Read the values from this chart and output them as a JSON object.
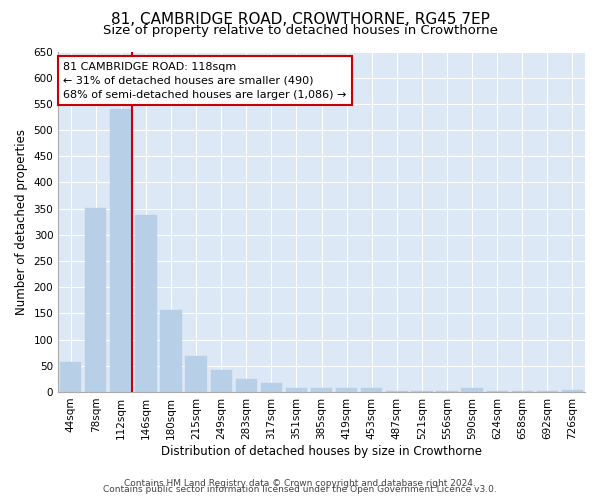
{
  "title1": "81, CAMBRIDGE ROAD, CROWTHORNE, RG45 7EP",
  "title2": "Size of property relative to detached houses in Crowthorne",
  "xlabel": "Distribution of detached houses by size in Crowthorne",
  "ylabel": "Number of detached properties",
  "categories": [
    "44sqm",
    "78sqm",
    "112sqm",
    "146sqm",
    "180sqm",
    "215sqm",
    "249sqm",
    "283sqm",
    "317sqm",
    "351sqm",
    "385sqm",
    "419sqm",
    "453sqm",
    "487sqm",
    "521sqm",
    "556sqm",
    "590sqm",
    "624sqm",
    "658sqm",
    "692sqm",
    "726sqm"
  ],
  "values": [
    57,
    352,
    541,
    337,
    156,
    68,
    42,
    25,
    18,
    8,
    8,
    8,
    8,
    2,
    2,
    2,
    7,
    2,
    2,
    2,
    4
  ],
  "bar_color": "#b8cfe8",
  "bar_edge_color": "#b8cfe8",
  "vline_color": "#cc0000",
  "annotation_line1": "81 CAMBRIDGE ROAD: 118sqm",
  "annotation_line2": "← 31% of detached houses are smaller (490)",
  "annotation_line3": "68% of semi-detached houses are larger (1,086) →",
  "annotation_box_color": "#ffffff",
  "annotation_box_edge_color": "#cc0000",
  "ylim": [
    0,
    650
  ],
  "yticks": [
    0,
    50,
    100,
    150,
    200,
    250,
    300,
    350,
    400,
    450,
    500,
    550,
    600,
    650
  ],
  "footer1": "Contains HM Land Registry data © Crown copyright and database right 2024.",
  "footer2": "Contains public sector information licensed under the Open Government Licence v3.0.",
  "plot_bg_color": "#dce8f5",
  "title1_fontsize": 11,
  "title2_fontsize": 9.5,
  "xlabel_fontsize": 8.5,
  "ylabel_fontsize": 8.5,
  "tick_fontsize": 7.5,
  "annotation_fontsize": 8,
  "footer_fontsize": 6.5
}
